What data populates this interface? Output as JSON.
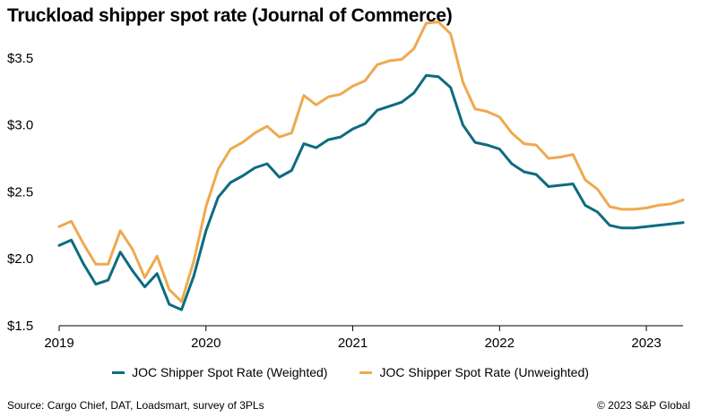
{
  "title": "Truckload shipper spot rate (Journal of Commerce)",
  "source": "Source: Cargo Chief, DAT, Loadsmart, survey of 3PLs",
  "copyright": "© 2023 S&P Global",
  "colors": {
    "weighted": "#0e6b80",
    "unweighted": "#eeaa4f",
    "axis": "#000000"
  },
  "chart_data": {
    "type": "line",
    "title": "Truckload shipper spot rate (Journal of Commerce)",
    "xlabel": "",
    "ylabel": "",
    "ylim": [
      1.5,
      3.8
    ],
    "xlim": [
      2019.0,
      2023.25
    ],
    "grid": false,
    "legend_position": "bottom",
    "y_ticks": [
      1.5,
      2.0,
      2.5,
      3.0,
      3.5
    ],
    "y_tick_labels": [
      "$1.5",
      "$2.0",
      "$2.5",
      "$3.0",
      "$3.5"
    ],
    "x_ticks": [
      2019,
      2020,
      2021,
      2022,
      2023
    ],
    "x_tick_labels": [
      "2019",
      "2020",
      "2021",
      "2022",
      "2023"
    ],
    "x": [
      "2019-01",
      "2019-02",
      "2019-03",
      "2019-04",
      "2019-05",
      "2019-06",
      "2019-07",
      "2019-08",
      "2019-09",
      "2019-10",
      "2019-11",
      "2019-12",
      "2020-01",
      "2020-02",
      "2020-03",
      "2020-04",
      "2020-05",
      "2020-06",
      "2020-07",
      "2020-08",
      "2020-09",
      "2020-10",
      "2020-11",
      "2020-12",
      "2021-01",
      "2021-02",
      "2021-03",
      "2021-04",
      "2021-05",
      "2021-06",
      "2021-07",
      "2021-08",
      "2021-09",
      "2021-10",
      "2021-11",
      "2021-12",
      "2022-01",
      "2022-02",
      "2022-03",
      "2022-04",
      "2022-05",
      "2022-06",
      "2022-07",
      "2022-08",
      "2022-09",
      "2022-10",
      "2022-11",
      "2022-12",
      "2023-01",
      "2023-02",
      "2023-03",
      "2023-04"
    ],
    "series": [
      {
        "name": "JOC Shipper Spot Rate (Weighted)",
        "color": "#0e6b80",
        "values": [
          2.1,
          2.14,
          1.96,
          1.81,
          1.84,
          2.05,
          1.91,
          1.79,
          1.89,
          1.66,
          1.62,
          1.87,
          2.21,
          2.46,
          2.57,
          2.62,
          2.68,
          2.71,
          2.61,
          2.66,
          2.86,
          2.83,
          2.89,
          2.91,
          2.97,
          3.01,
          3.11,
          3.14,
          3.17,
          3.24,
          3.37,
          3.36,
          3.28,
          3.0,
          2.87,
          2.85,
          2.82,
          2.71,
          2.65,
          2.63,
          2.54,
          2.55,
          2.56,
          2.4,
          2.35,
          2.25,
          2.23,
          2.23,
          2.24,
          2.25,
          2.26,
          2.27
        ]
      },
      {
        "name": "JOC Shipper Spot Rate (Unweighted)",
        "color": "#eeaa4f",
        "values": [
          2.24,
          2.28,
          2.11,
          1.96,
          1.96,
          2.21,
          2.07,
          1.86,
          2.02,
          1.77,
          1.68,
          1.98,
          2.39,
          2.67,
          2.82,
          2.87,
          2.94,
          2.99,
          2.91,
          2.94,
          3.22,
          3.15,
          3.21,
          3.23,
          3.29,
          3.33,
          3.45,
          3.48,
          3.49,
          3.57,
          3.76,
          3.77,
          3.68,
          3.32,
          3.12,
          3.1,
          3.06,
          2.94,
          2.86,
          2.85,
          2.75,
          2.76,
          2.78,
          2.59,
          2.52,
          2.39,
          2.37,
          2.37,
          2.38,
          2.4,
          2.41,
          2.44
        ]
      }
    ]
  }
}
